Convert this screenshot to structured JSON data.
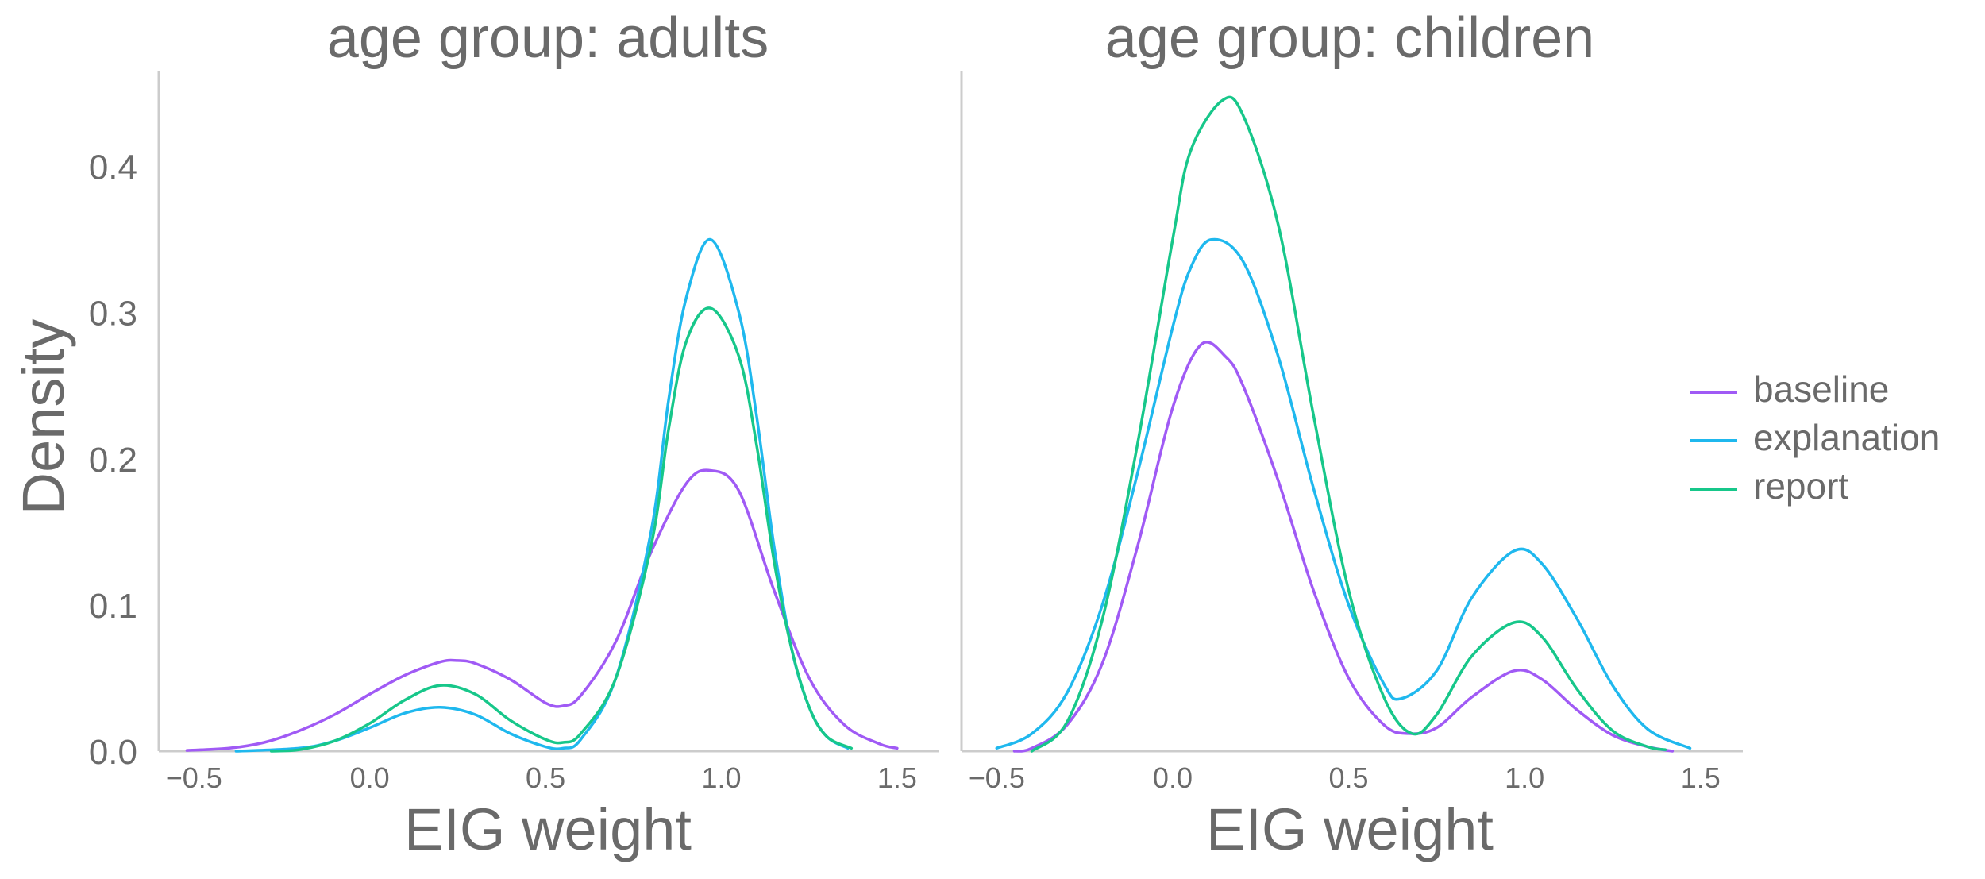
{
  "chart_data": {
    "type": "line",
    "kind": "kde",
    "ylabel": "Density",
    "legend_position": "right",
    "series_styles": [
      {
        "name": "baseline",
        "color": "#a05af5"
      },
      {
        "name": "explanation",
        "color": "#1fb8ee"
      },
      {
        "name": "report",
        "color": "#17c78a"
      }
    ],
    "panels": [
      {
        "title": "age group: adults",
        "xlabel": "EIG weight",
        "xlim": [
          -0.6,
          1.62
        ],
        "ylim": [
          0,
          0.465
        ],
        "xticks": [
          "−0.5",
          "0.0",
          "0.5",
          "1.0",
          "1.5"
        ],
        "xtick_values": [
          -0.5,
          0.0,
          0.5,
          1.0,
          1.5
        ],
        "yticks": [
          "0.0",
          "0.1",
          "0.2",
          "0.3",
          "0.4"
        ],
        "ytick_values": [
          0.0,
          0.1,
          0.2,
          0.3,
          0.4
        ],
        "series": [
          {
            "name": "baseline",
            "x": [
              -0.52,
              -0.4,
              -0.3,
              -0.2,
              -0.1,
              0.0,
              0.1,
              0.2,
              0.25,
              0.3,
              0.4,
              0.5,
              0.55,
              0.6,
              0.7,
              0.8,
              0.9,
              0.97,
              1.05,
              1.15,
              1.25,
              1.35,
              1.45,
              1.5
            ],
            "y": [
              0.0005,
              0.002,
              0.006,
              0.014,
              0.025,
              0.039,
              0.052,
              0.061,
              0.062,
              0.06,
              0.049,
              0.033,
              0.031,
              0.038,
              0.075,
              0.136,
              0.183,
              0.192,
              0.178,
              0.11,
              0.05,
              0.018,
              0.005,
              0.002
            ]
          },
          {
            "name": "explanation",
            "x": [
              -0.38,
              -0.2,
              -0.1,
              0.0,
              0.1,
              0.2,
              0.3,
              0.4,
              0.5,
              0.55,
              0.6,
              0.7,
              0.8,
              0.85,
              0.9,
              0.97,
              1.05,
              1.1,
              1.15,
              1.2,
              1.25,
              1.3,
              1.36
            ],
            "y": [
              0.0,
              0.002,
              0.007,
              0.016,
              0.026,
              0.03,
              0.025,
              0.012,
              0.003,
              0.002,
              0.008,
              0.05,
              0.15,
              0.24,
              0.31,
              0.35,
              0.3,
              0.23,
              0.14,
              0.07,
              0.03,
              0.01,
              0.002
            ]
          },
          {
            "name": "report",
            "x": [
              -0.28,
              -0.2,
              -0.1,
              0.0,
              0.1,
              0.2,
              0.3,
              0.4,
              0.5,
              0.55,
              0.6,
              0.7,
              0.8,
              0.85,
              0.9,
              0.97,
              1.05,
              1.1,
              1.15,
              1.2,
              1.25,
              1.3,
              1.37
            ],
            "y": [
              0.0,
              0.001,
              0.007,
              0.019,
              0.035,
              0.045,
              0.039,
              0.021,
              0.008,
              0.006,
              0.012,
              0.05,
              0.14,
              0.22,
              0.28,
              0.303,
              0.27,
              0.21,
              0.13,
              0.07,
              0.03,
              0.01,
              0.002
            ]
          }
        ]
      },
      {
        "title": "age group: children",
        "xlabel": "EIG weight",
        "xlim": [
          -0.6,
          1.62
        ],
        "ylim": [
          0,
          0.465
        ],
        "xticks": [
          "−0.5",
          "0.0",
          "0.5",
          "1.0",
          "1.5"
        ],
        "xtick_values": [
          -0.5,
          0.0,
          0.5,
          1.0,
          1.5
        ],
        "yticks": [
          "0.0",
          "0.1",
          "0.2",
          "0.3",
          "0.4"
        ],
        "ytick_values": [
          0.0,
          0.1,
          0.2,
          0.3,
          0.4
        ],
        "series": [
          {
            "name": "baseline",
            "x": [
              -0.45,
              -0.4,
              -0.3,
              -0.2,
              -0.1,
              0.0,
              0.08,
              0.15,
              0.2,
              0.3,
              0.4,
              0.5,
              0.6,
              0.67,
              0.75,
              0.85,
              0.97,
              1.05,
              1.15,
              1.25,
              1.35,
              1.42
            ],
            "y": [
              0.0,
              0.002,
              0.018,
              0.06,
              0.14,
              0.235,
              0.278,
              0.27,
              0.25,
              0.185,
              0.11,
              0.05,
              0.018,
              0.012,
              0.016,
              0.037,
              0.055,
              0.049,
              0.028,
              0.011,
              0.003,
              0.0
            ]
          },
          {
            "name": "explanation",
            "x": [
              -0.5,
              -0.4,
              -0.3,
              -0.2,
              -0.1,
              0.0,
              0.05,
              0.11,
              0.2,
              0.3,
              0.4,
              0.5,
              0.6,
              0.65,
              0.75,
              0.85,
              0.97,
              1.05,
              1.15,
              1.25,
              1.35,
              1.47
            ],
            "y": [
              0.002,
              0.012,
              0.04,
              0.1,
              0.19,
              0.29,
              0.33,
              0.35,
              0.335,
              0.27,
              0.18,
              0.1,
              0.046,
              0.036,
              0.055,
              0.105,
              0.137,
              0.128,
              0.09,
              0.045,
              0.015,
              0.002
            ]
          },
          {
            "name": "report",
            "x": [
              -0.4,
              -0.3,
              -0.2,
              -0.1,
              0.0,
              0.05,
              0.14,
              0.2,
              0.3,
              0.4,
              0.5,
              0.6,
              0.68,
              0.75,
              0.85,
              0.97,
              1.05,
              1.15,
              1.25,
              1.35,
              1.4
            ],
            "y": [
              0.0,
              0.02,
              0.09,
              0.21,
              0.35,
              0.41,
              0.445,
              0.435,
              0.36,
              0.23,
              0.11,
              0.037,
              0.012,
              0.025,
              0.065,
              0.088,
              0.078,
              0.042,
              0.014,
              0.003,
              0.001
            ]
          }
        ]
      }
    ]
  }
}
